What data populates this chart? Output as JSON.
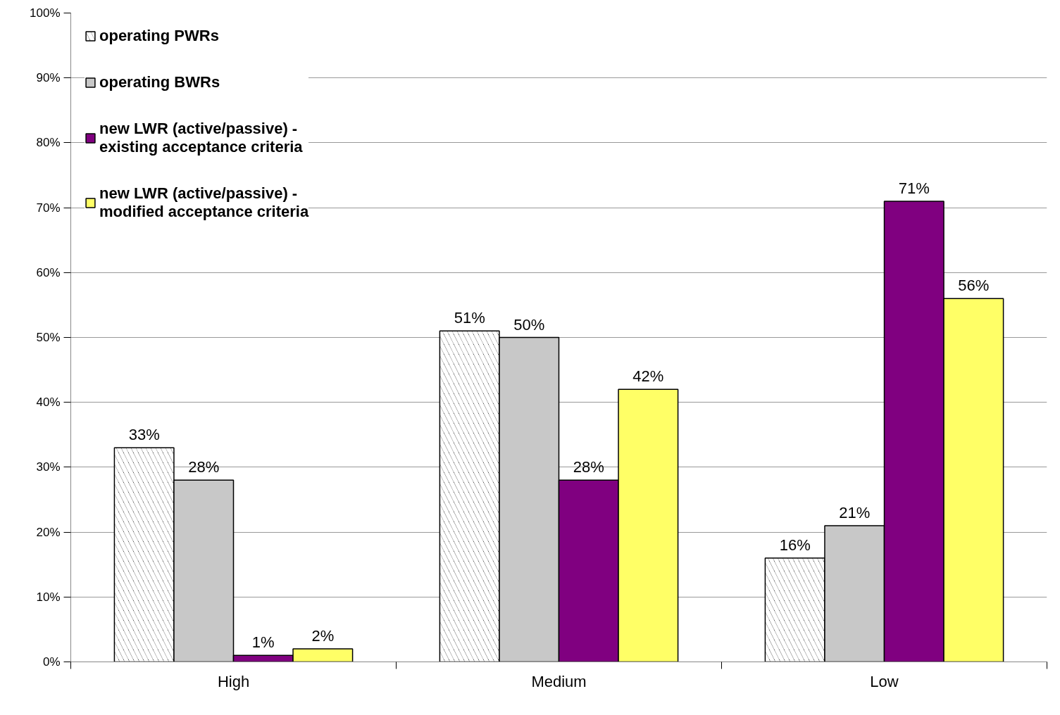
{
  "chart_data": {
    "type": "bar",
    "categories": [
      "High",
      "Medium",
      "Low"
    ],
    "series": [
      {
        "name": "operating PWRs",
        "color": "#000000",
        "values": [
          33,
          51,
          16
        ],
        "value_labels": [
          "33%",
          "51%",
          "16%"
        ]
      },
      {
        "name": "operating BWRs",
        "color": "#c8c8c8",
        "values": [
          28,
          50,
          21
        ],
        "value_labels": [
          "28%",
          "50%",
          "21%"
        ]
      },
      {
        "name": "new LWR (active/passive) - existing acceptance criteria",
        "color": "#800080",
        "values": [
          1,
          28,
          71
        ],
        "value_labels": [
          "1%",
          "28%",
          "71%"
        ]
      },
      {
        "name": "new LWR (active/passive) - modified acceptance criteria",
        "color": "#ffff66",
        "values": [
          2,
          42,
          56
        ],
        "value_labels": [
          "2%",
          "42%",
          "56%"
        ]
      }
    ],
    "ylim": [
      0,
      100
    ],
    "yticks": [
      {
        "value": 0,
        "label": "0%"
      },
      {
        "value": 10,
        "label": "10%"
      },
      {
        "value": 20,
        "label": "20%"
      },
      {
        "value": 30,
        "label": "30%"
      },
      {
        "value": 40,
        "label": "40%"
      },
      {
        "value": 50,
        "label": "50%"
      },
      {
        "value": 60,
        "label": "60%"
      },
      {
        "value": 70,
        "label": "70%"
      },
      {
        "value": 80,
        "label": "80%"
      },
      {
        "value": 90,
        "label": "90%"
      },
      {
        "value": 100,
        "label": "100%"
      }
    ],
    "grid": "y",
    "legend": "top left"
  }
}
